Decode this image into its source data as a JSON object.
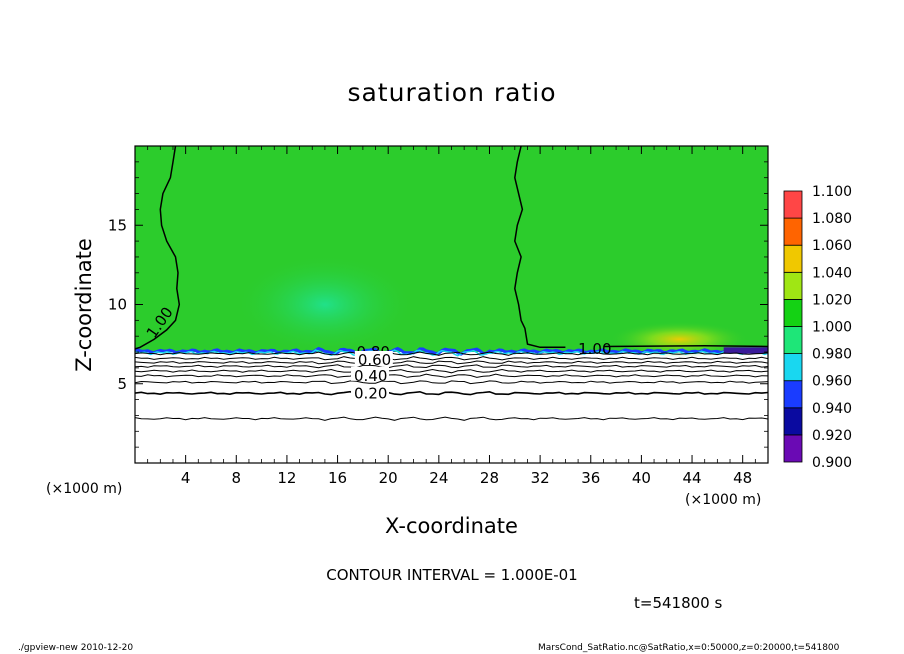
{
  "chart_data": {
    "type": "heatmap",
    "title": "saturation ratio",
    "xlabel": "X-coordinate",
    "ylabel": "Z-coordinate",
    "x_unit_label": "(×1000 m)",
    "x_unit_label_right": "(×1000 m)",
    "xlim": [
      0,
      50
    ],
    "ylim": [
      0,
      20
    ],
    "x_ticks": [
      4,
      8,
      12,
      16,
      20,
      24,
      28,
      32,
      36,
      40,
      44,
      48
    ],
    "y_ticks": [
      5,
      10,
      15
    ],
    "colorbar": {
      "levels": [
        "0.900",
        "0.920",
        "0.940",
        "0.960",
        "0.980",
        "1.000",
        "1.020",
        "1.040",
        "1.060",
        "1.080",
        "1.100"
      ],
      "colors": [
        "#6a0ab4",
        "#0a0aa0",
        "#1a3cff",
        "#19d7f0",
        "#1ee678",
        "#14d214",
        "#a0e614",
        "#f0c800",
        "#ff6400",
        "#ff4646",
        "#ff9a9a"
      ]
    },
    "field": {
      "cloud_top_z": 7.0,
      "background_color": "#2ccc2c",
      "below_cloud_color": "#ffffff"
    },
    "contour_labels": [
      {
        "text": "1.00",
        "x": 1.2,
        "z": 8.0
      },
      {
        "text": "1.00",
        "x": 35.0,
        "z": 7.2
      },
      {
        "text": "0.80",
        "x": 17.5,
        "z": 7.0
      },
      {
        "text": "0.60",
        "x": 17.6,
        "z": 6.5
      },
      {
        "text": "0.40",
        "x": 17.3,
        "z": 5.5
      },
      {
        "text": "0.20",
        "x": 17.3,
        "z": 4.4
      }
    ],
    "contour_interval": "CONTOUR INTERVAL = 1.000E-01",
    "time": "t=541800 s"
  },
  "footer": {
    "left": "./gpview-new   2010-12-20",
    "right": "MarsCond_SatRatio.nc@SatRatio,x=0:50000,z=0:20000,t=541800"
  }
}
